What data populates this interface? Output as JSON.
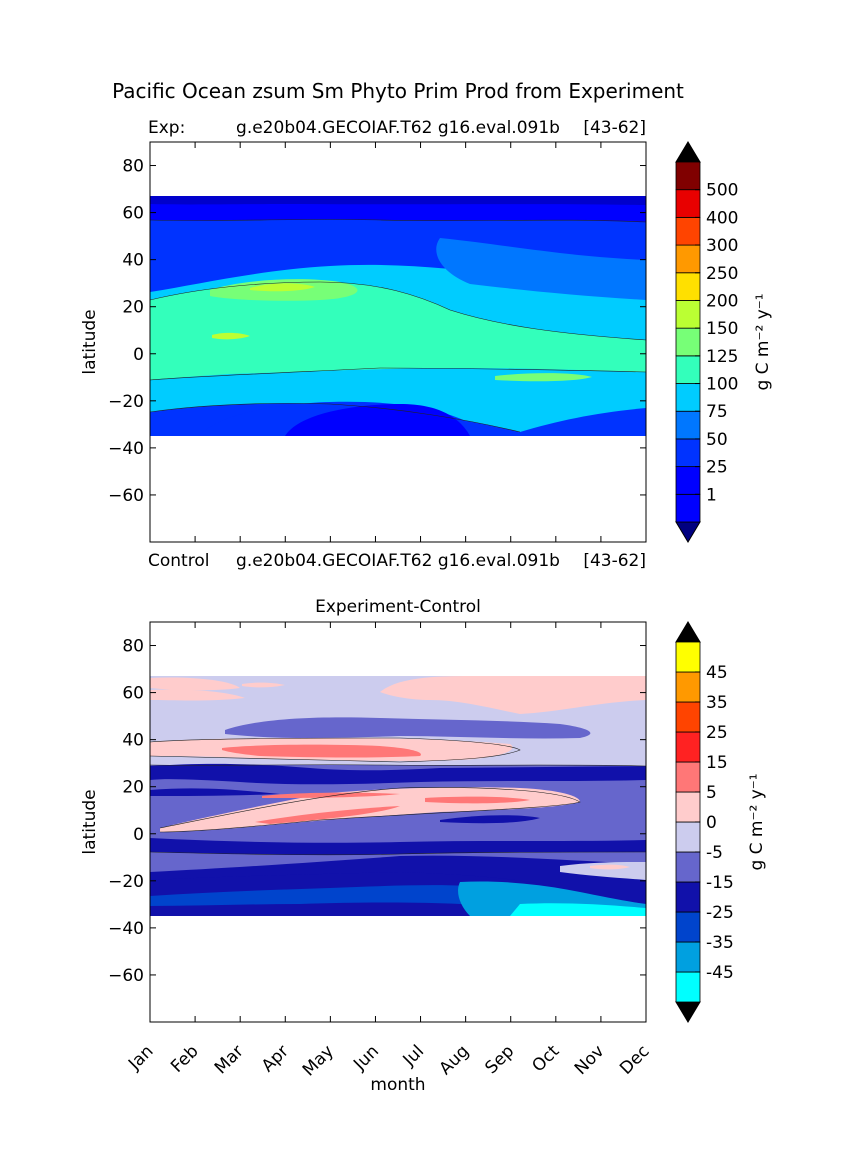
{
  "figure_title": "Pacific Ocean zsum Sm Phyto Prim Prod from Experiment",
  "chart_data": [
    {
      "type": "heatmap",
      "subtype": "filled-contour",
      "title_left": "Exp:",
      "title_center": "g.e20b04.GECOIAF.T62 g16.eval.091b",
      "title_right": "[43-62]",
      "xlabel": "",
      "ylabel": "latitude",
      "ylim": [
        -80,
        90
      ],
      "yticks": [
        "80",
        "60",
        "40",
        "20",
        "0",
        "−20",
        "−40",
        "−60"
      ],
      "data_lat_range": [
        -34,
        67
      ],
      "colorbar": {
        "label": "g C m⁻² y⁻¹",
        "tick_labels": [
          "1",
          "25",
          "50",
          "75",
          "100",
          "125",
          "150",
          "200",
          "250",
          "300",
          "400",
          "500"
        ],
        "level_colors": [
          "#0000ff",
          "#0000ff",
          "#0033ff",
          "#0077ff",
          "#00ccff",
          "#33ffbb",
          "#77ff77",
          "#bbff33",
          "#ffe000",
          "#ff9900",
          "#ff4400",
          "#e80000",
          "#800000"
        ],
        "under_color": "#000080",
        "over_color": "#000000"
      }
    },
    {
      "type": "heatmap",
      "subtype": "filled-contour",
      "title_left": "Control",
      "title_center": "g.e20b04.GECOIAF.T62 g16.eval.091b",
      "title_right": "[43-62]",
      "title_bottom": "Experiment-Control",
      "xlabel": "month",
      "ylabel": "latitude",
      "ylim": [
        -80,
        90
      ],
      "yticks": [
        "80",
        "60",
        "40",
        "20",
        "0",
        "−20",
        "−40",
        "−60"
      ],
      "xticks": [
        "Jan",
        "Feb",
        "Mar",
        "Apr",
        "May",
        "Jun",
        "Jul",
        "Aug",
        "Sep",
        "Oct",
        "Nov",
        "Dec"
      ],
      "data_lat_range": [
        -34,
        67
      ],
      "colorbar": {
        "label": "g C m⁻² y⁻¹",
        "tick_labels": [
          "45",
          "35",
          "25",
          "15",
          "5",
          "0",
          "-5",
          "-15",
          "-25",
          "-35",
          "-45"
        ],
        "level_colors": [
          "#00ffff",
          "#00a0e0",
          "#0044cc",
          "#1111aa",
          "#6666cc",
          "#ccccee",
          "#ffcccc",
          "#ff7777",
          "#ff2222",
          "#ff4400",
          "#ff9900",
          "#ffff00"
        ],
        "under_color": "#000000",
        "over_color": "#000000"
      }
    }
  ]
}
